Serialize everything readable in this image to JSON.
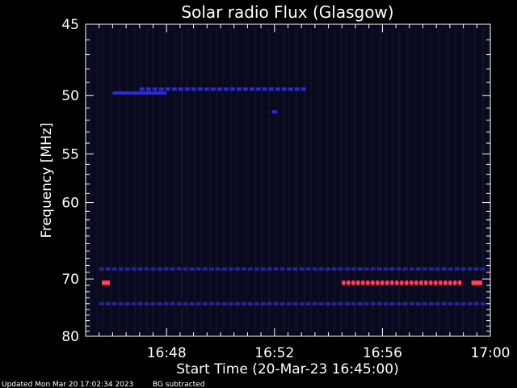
{
  "chart_data": {
    "type": "heatmap",
    "title": "Solar radio Flux (Glasgow)",
    "xlabel": "Start Time (20-Mar-23 16:45:00)",
    "ylabel": "Frequency [MHz]",
    "x_ticks": [
      "16:48",
      "16:52",
      "16:56",
      "17:00"
    ],
    "x_tick_minutes": [
      48,
      52,
      56,
      60
    ],
    "xlim_minutes": [
      45,
      60
    ],
    "y_ticks": [
      45,
      50,
      55,
      60,
      70,
      80
    ],
    "ylim_mhz": [
      45,
      80
    ],
    "y_scale": "reciprocal",
    "background_color": "#0a0a1e",
    "grid": false,
    "series": [
      {
        "freq_mhz": 49.8,
        "t_start_min": 46.0,
        "t_end_min": 48.0,
        "intensity": "medium",
        "color": "#2a2ae0",
        "style": "solid"
      },
      {
        "freq_mhz": 49.5,
        "t_start_min": 47.0,
        "t_end_min": 53.2,
        "intensity": "medium",
        "color": "#2a2ae0",
        "style": "dashed"
      },
      {
        "freq_mhz": 51.3,
        "t_start_min": 51.9,
        "t_end_min": 52.1,
        "intensity": "medium",
        "color": "#2a2ae0",
        "style": "solid"
      },
      {
        "freq_mhz": 68.5,
        "t_start_min": 45.5,
        "t_end_min": 59.8,
        "intensity": "low",
        "color": "#25259a",
        "style": "dashed"
      },
      {
        "freq_mhz": 70.6,
        "t_start_min": 45.6,
        "t_end_min": 45.9,
        "intensity": "high",
        "color": "#ff3048",
        "style": "solid"
      },
      {
        "freq_mhz": 70.6,
        "t_start_min": 54.5,
        "t_end_min": 58.9,
        "intensity": "high",
        "color": "#ff3048",
        "style": "dashed"
      },
      {
        "freq_mhz": 70.6,
        "t_start_min": 59.3,
        "t_end_min": 59.7,
        "intensity": "high",
        "color": "#ff3048",
        "style": "solid"
      },
      {
        "freq_mhz": 74.0,
        "t_start_min": 45.5,
        "t_end_min": 59.8,
        "intensity": "low",
        "color": "#25259a",
        "style": "dashed"
      }
    ]
  },
  "footer": {
    "updated": "Updated Mon Mar 20 17:02:34 2023",
    "note": "BG subtracted"
  }
}
